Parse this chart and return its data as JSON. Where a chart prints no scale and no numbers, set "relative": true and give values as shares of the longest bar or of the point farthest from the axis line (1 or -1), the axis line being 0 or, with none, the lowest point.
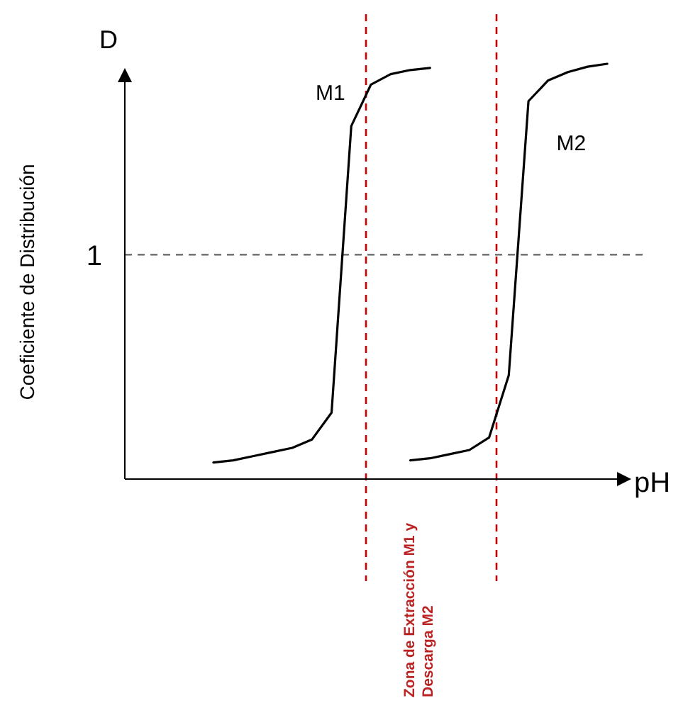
{
  "chart_data": {
    "type": "line",
    "relative": true,
    "xlabel": "pH",
    "ylabel": "Coeficiente de Distribución",
    "tick_labels": false,
    "marker": "none",
    "line_style": "solid",
    "categories": [
      null,
      null,
      null,
      null,
      null,
      null,
      null,
      null,
      null,
      null,
      null,
      null,
      null,
      null,
      null,
      null,
      null,
      null,
      null,
      null,
      null,
      null,
      null,
      null,
      null
    ],
    "series": [
      {
        "name": "M1",
        "color": "#000000",
        "values": [
          null,
          null,
          null,
          null,
          0.04,
          0.045,
          0.055,
          0.065,
          0.075,
          0.095,
          0.16,
          0.85,
          0.95,
          0.975,
          0.985,
          0.99,
          null,
          null,
          null,
          null,
          null,
          null,
          null,
          null,
          null
        ]
      },
      {
        "name": "M2",
        "color": "#000000",
        "values": [
          null,
          null,
          null,
          null,
          null,
          null,
          null,
          null,
          null,
          null,
          null,
          null,
          null,
          null,
          0.045,
          0.05,
          0.06,
          0.07,
          0.1,
          0.25,
          0.91,
          0.96,
          0.98,
          0.993,
          1.0
        ]
      }
    ],
    "ref_lines": [
      {
        "axis": "y",
        "value": 0.54,
        "label": "1",
        "color": "#555555",
        "line_style": "dashed"
      }
    ],
    "annotations": [
      "Zona de Extracción M1 y Descarga M2",
      "D"
    ]
  }
}
